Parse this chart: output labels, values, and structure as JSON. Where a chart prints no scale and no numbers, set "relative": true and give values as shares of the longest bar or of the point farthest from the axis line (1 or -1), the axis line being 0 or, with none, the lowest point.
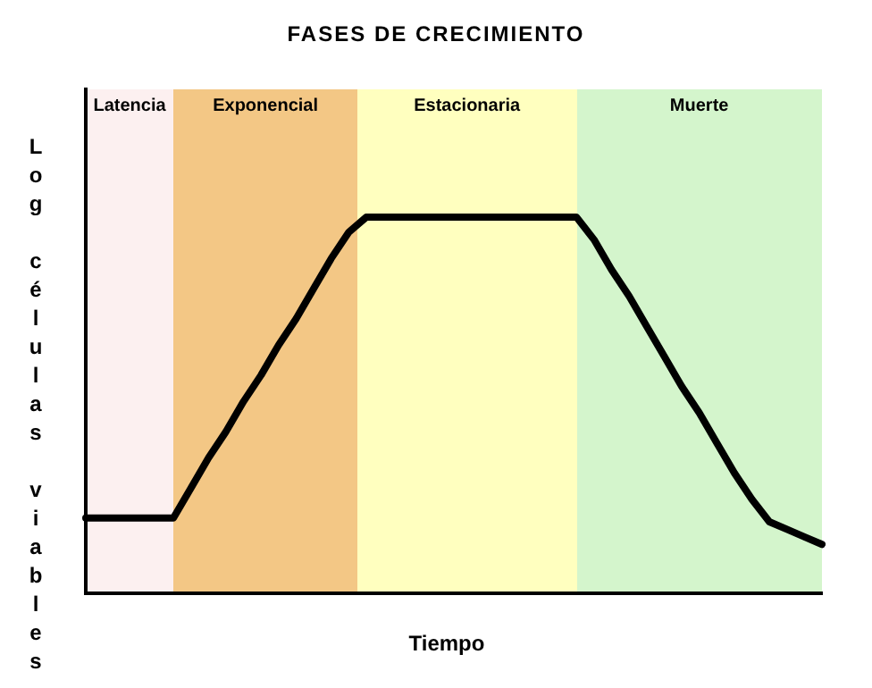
{
  "chart_data": {
    "type": "line",
    "title": "FASES DE CRECIMIENTO",
    "xlabel": "Tiempo",
    "ylabel": "Log células viables",
    "relative": true,
    "categories": [
      null,
      null,
      null,
      null,
      null,
      null,
      null,
      null,
      null,
      null,
      null,
      null,
      null,
      null,
      null,
      null,
      null,
      null,
      null,
      null,
      null,
      null,
      null,
      null,
      null,
      null,
      null,
      null,
      null,
      null,
      null,
      null,
      null,
      null,
      null,
      null,
      null,
      null,
      null,
      null,
      null,
      null,
      null
    ],
    "series": [
      {
        "color": "#000000",
        "values": [
          0.2,
          0.2,
          0.2,
          0.2,
          0.2,
          0.2,
          0.28,
          0.36,
          0.43,
          0.51,
          0.58,
          0.66,
          0.73,
          0.81,
          0.89,
          0.96,
          1,
          1,
          1,
          1,
          1,
          1,
          1,
          1,
          1,
          1,
          1,
          1,
          1,
          0.94,
          0.86,
          0.79,
          0.71,
          0.63,
          0.55,
          0.48,
          0.4,
          0.32,
          0.25,
          0.19,
          0.17,
          0.15,
          0.13
        ]
      }
    ],
    "annotations": [
      "Latencia",
      "Exponencial",
      "Estacionaria",
      "Muerte"
    ]
  }
}
